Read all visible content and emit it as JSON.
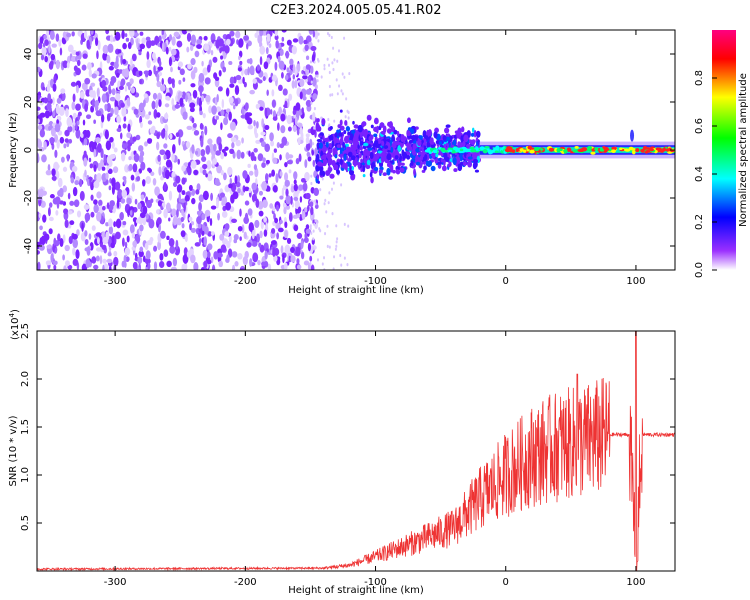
{
  "title": "C2E3.2024.005.05.41.R02",
  "chart_data": [
    {
      "type": "heatmap",
      "xlabel": "Height of straight line (km)",
      "ylabel": "Frequency (Hz)",
      "xlim": [
        -360,
        130
      ],
      "ylim": [
        -50,
        50
      ],
      "xticks": [
        -300,
        -200,
        -100,
        0,
        100
      ],
      "yticks": [
        -40,
        -20,
        0,
        20,
        40
      ],
      "colorbar": {
        "label": "Normalized spectral amplitude",
        "range": [
          0.0,
          1.0
        ],
        "ticks": [
          0.0,
          0.2,
          0.4,
          0.6,
          0.8
        ],
        "colors": [
          "#ffffff",
          "#7f00ff",
          "#0000ff",
          "#00ffff",
          "#00ff00",
          "#ffff00",
          "#ff0000",
          "#ff0080"
        ]
      },
      "regions": [
        {
          "x_range": [
            -360,
            -145
          ],
          "freq_spread": 50,
          "amplitude": 0.05
        },
        {
          "x_range": [
            -145,
            -20
          ],
          "freq_spread": 15,
          "amplitude": 0.25
        },
        {
          "x_range": [
            -20,
            130
          ],
          "freq_spread": 3,
          "amplitude": 0.8
        }
      ]
    },
    {
      "type": "line",
      "xlabel": "Height of straight line (km)",
      "ylabel": "SNR (10 * v/v)",
      "scale_note": "(x10",
      "scale_exp": "4",
      "scale_close": ")",
      "xlim": [
        -360,
        130
      ],
      "ylim": [
        0,
        2.5
      ],
      "xticks": [
        -300,
        -200,
        -100,
        0,
        100
      ],
      "yticks": [
        0.5,
        1.0,
        1.5,
        2.0,
        2.5
      ],
      "ytick_labels": [
        "0.5",
        "1.0",
        "1.5",
        "2.0",
        "2.5"
      ],
      "color": "#ee3333",
      "envelope": [
        {
          "x": -360,
          "y": 0.02
        },
        {
          "x": -140,
          "y": 0.03
        },
        {
          "x": -120,
          "y": 0.06
        },
        {
          "x": -100,
          "y": 0.15
        },
        {
          "x": -80,
          "y": 0.25
        },
        {
          "x": -60,
          "y": 0.35
        },
        {
          "x": -40,
          "y": 0.45
        },
        {
          "x": -20,
          "y": 0.75
        },
        {
          "x": 0,
          "y": 1.0
        },
        {
          "x": 20,
          "y": 1.2
        },
        {
          "x": 40,
          "y": 1.3
        },
        {
          "x": 60,
          "y": 1.35
        },
        {
          "x": 80,
          "y": 1.42
        },
        {
          "x": 95,
          "y": 1.42
        },
        {
          "x": 100,
          "y": 0.15
        },
        {
          "x": 105,
          "y": 1.42
        },
        {
          "x": 130,
          "y": 1.42
        }
      ],
      "peaks": [
        {
          "x": 55,
          "y": 2.05
        },
        {
          "x": 100,
          "y": 2.5
        },
        {
          "x": 101,
          "y": 0.1
        }
      ]
    }
  ]
}
